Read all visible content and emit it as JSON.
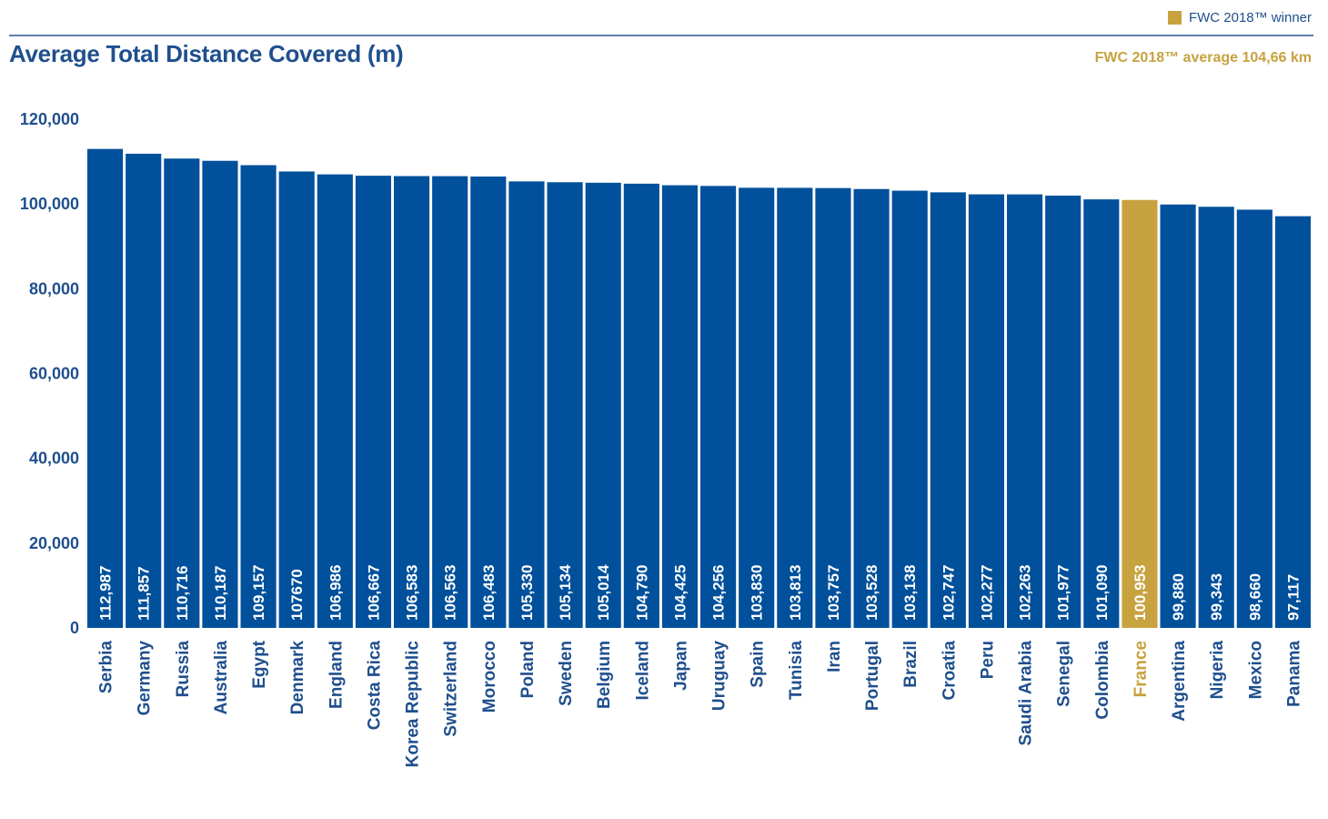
{
  "header": {
    "legend_label": "FWC 2018™ winner",
    "title": "Average Total Distance Covered (m)",
    "subtitle": "FWC 2018™ average 104,66 km"
  },
  "colors": {
    "bar": "#00509b",
    "highlight": "#c7a23f",
    "text": "#1f4f8d",
    "rule": "#5f7fae"
  },
  "chart_data": {
    "type": "bar",
    "title": "Average Total Distance Covered (m)",
    "xlabel": "",
    "ylabel": "",
    "ylim": [
      0,
      120000
    ],
    "y_ticks": [
      "0",
      "20,000",
      "40,000",
      "60,000",
      "80,000",
      "100,000",
      "120,000"
    ],
    "categories": [
      "Serbia",
      "Germany",
      "Russia",
      "Australia",
      "Egypt",
      "Denmark",
      "England",
      "Costa Rica",
      "Korea Republic",
      "Switzerland",
      "Morocco",
      "Poland",
      "Sweden",
      "Belgium",
      "Iceland",
      "Japan",
      "Uruguay",
      "Spain",
      "Tunisia",
      "Iran",
      "Portugal",
      "Brazil",
      "Croatia",
      "Peru",
      "Saudi Arabia",
      "Senegal",
      "Colombia",
      "France",
      "Argentina",
      "Nigeria",
      "Mexico",
      "Panama"
    ],
    "values": [
      112987,
      111857,
      110716,
      110187,
      109157,
      107670,
      106986,
      106667,
      106583,
      106563,
      106483,
      105330,
      105134,
      105014,
      104790,
      104425,
      104256,
      103830,
      103813,
      103757,
      103528,
      103138,
      102747,
      102277,
      102263,
      101977,
      101090,
      100953,
      99880,
      99343,
      98660,
      97117
    ],
    "value_labels": [
      "112,987",
      "111,857",
      "110,716",
      "110,187",
      "109,157",
      "107670",
      "106,986",
      "106,667",
      "106,583",
      "106,563",
      "106,483",
      "105,330",
      "105,134",
      "105,014",
      "104,790",
      "104,425",
      "104,256",
      "103,830",
      "103,813",
      "103,757",
      "103,528",
      "103,138",
      "102,747",
      "102,277",
      "102,263",
      "101,977",
      "101,090",
      "100,953",
      "99,880",
      "99,343",
      "98,660",
      "97,117"
    ],
    "highlight_category": "France",
    "legend": "top-right",
    "grid": false
  }
}
